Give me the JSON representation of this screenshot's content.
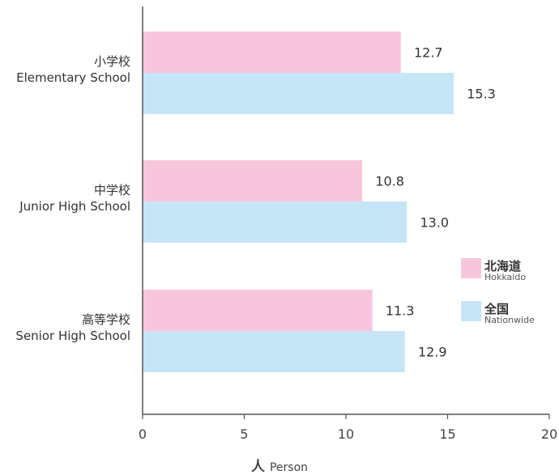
{
  "chart_data": {
    "type": "bar",
    "orientation": "horizontal",
    "categories": [
      {
        "jp": "小学校",
        "en": "Elementary School"
      },
      {
        "jp": "中学校",
        "en": "Junior High School"
      },
      {
        "jp": "高等学校",
        "en": "Senior High School"
      }
    ],
    "series": [
      {
        "name": "北海道",
        "sub": "Hokkaido",
        "color": "#f7c6dd",
        "values": [
          12.7,
          10.8,
          11.3
        ],
        "labels": [
          "12.7",
          "10.8",
          "11.3"
        ]
      },
      {
        "name": "全国",
        "sub": "Nationwide",
        "color": "#c6e6f8",
        "values": [
          15.3,
          13.0,
          12.9
        ],
        "labels": [
          "15.3",
          "13.0",
          "12.9"
        ]
      }
    ],
    "x_ticks": [
      "0",
      "5",
      "10",
      "15",
      "20"
    ],
    "xlim": [
      0,
      20
    ],
    "xlabel": {
      "jp": "人",
      "en": "Person"
    },
    "legend_position": "right"
  }
}
